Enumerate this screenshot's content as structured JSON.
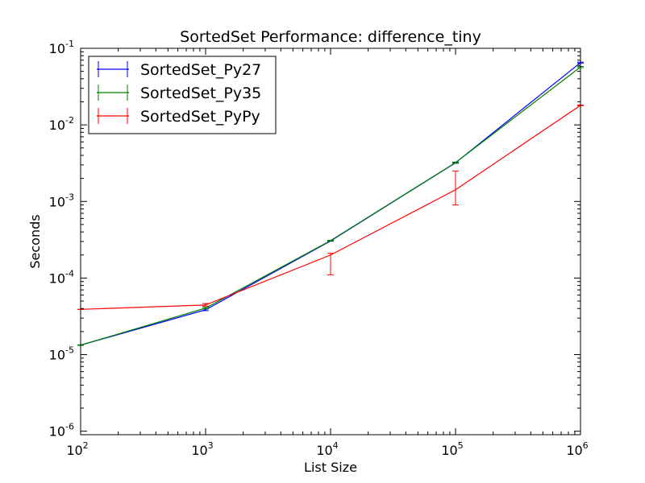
{
  "chart_data": {
    "type": "line",
    "title": "SortedSet Performance: difference_tiny",
    "xlabel": "List Size",
    "ylabel": "Seconds",
    "xscale": "log",
    "yscale": "log",
    "xlim": [
      100,
      1000000
    ],
    "ylim": [
      9e-07,
      0.1
    ],
    "grid": false,
    "legend_position": "top-left",
    "x_ticks": [
      {
        "base": "10",
        "exp": "2",
        "value": 100
      },
      {
        "base": "10",
        "exp": "3",
        "value": 1000
      },
      {
        "base": "10",
        "exp": "4",
        "value": 10000
      },
      {
        "base": "10",
        "exp": "5",
        "value": 100000
      },
      {
        "base": "10",
        "exp": "6",
        "value": 1000000
      }
    ],
    "y_ticks": [
      {
        "base": "10",
        "exp": "-6",
        "value": 1e-06
      },
      {
        "base": "10",
        "exp": "-5",
        "value": 1e-05
      },
      {
        "base": "10",
        "exp": "-4",
        "value": 0.0001
      },
      {
        "base": "10",
        "exp": "-3",
        "value": 0.001
      },
      {
        "base": "10",
        "exp": "-2",
        "value": 0.01
      },
      {
        "base": "10",
        "exp": "-1",
        "value": 0.1
      }
    ],
    "x": [
      100,
      1000,
      10000,
      100000,
      1000000
    ],
    "series": [
      {
        "name": "SortedSet_Py27",
        "color": "#0000ff",
        "values": [
          1.33e-05,
          3.85e-05,
          0.000305,
          0.0032,
          0.065
        ],
        "err_low": [
          1.32e-05,
          3.75e-05,
          0.000302,
          0.00315,
          0.064
        ],
        "err_high": [
          1.34e-05,
          3.95e-05,
          0.000308,
          0.00325,
          0.066
        ]
      },
      {
        "name": "SortedSet_Py35",
        "color": "#008000",
        "values": [
          1.33e-05,
          4.05e-05,
          0.000308,
          0.00322,
          0.057
        ],
        "err_low": [
          1.32e-05,
          3.95e-05,
          0.000305,
          0.00317,
          0.056
        ],
        "err_high": [
          1.34e-05,
          4.15e-05,
          0.000311,
          0.00327,
          0.058
        ]
      },
      {
        "name": "SortedSet_PyPy",
        "color": "#ff0000",
        "values": [
          3.9e-05,
          4.45e-05,
          0.0002,
          0.00142,
          0.018
        ],
        "err_low": [
          3.9e-05,
          4.3e-05,
          0.00011,
          0.0009,
          0.0178
        ],
        "err_high": [
          3.9e-05,
          4.65e-05,
          0.00021,
          0.0025,
          0.0182
        ]
      }
    ]
  }
}
